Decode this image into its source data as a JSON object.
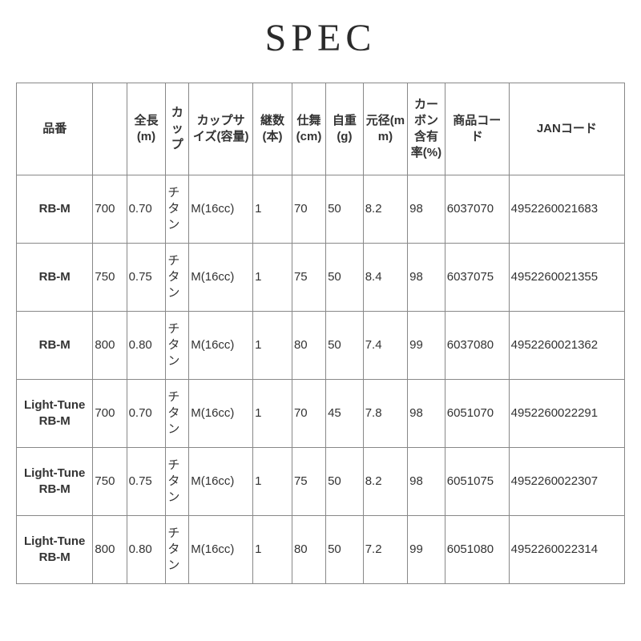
{
  "title": "SPEC",
  "table": {
    "columns": [
      {
        "key": "model",
        "label": "品番",
        "widthClass": "c0",
        "align": "center",
        "bold": true
      },
      {
        "key": "code1",
        "label": "全長(m)",
        "widthClass": "c1",
        "align": "left"
      },
      {
        "key": "length",
        "label": "カップ",
        "widthClass": "c2",
        "align": "left"
      },
      {
        "key": "cup",
        "label": "カップサイズ(容量)",
        "widthClass": "c3",
        "align": "left"
      },
      {
        "key": "cupsize",
        "label": "継数(本)",
        "widthClass": "c4",
        "align": "left"
      },
      {
        "key": "joints",
        "label": "仕舞(cm)",
        "widthClass": "c5",
        "align": "left"
      },
      {
        "key": "closed",
        "label": "自重(g)",
        "widthClass": "c6",
        "align": "left"
      },
      {
        "key": "weight",
        "label": "元径(mm)",
        "widthClass": "c7",
        "align": "left"
      },
      {
        "key": "dia",
        "label": "カーボン含有率(%)",
        "widthClass": "c8",
        "align": "left"
      },
      {
        "key": "carbon",
        "label": "商品コード",
        "widthClass": "c9",
        "align": "left"
      },
      {
        "key": "pcode",
        "label": "JANコード",
        "widthClass": "c10",
        "align": "left"
      },
      {
        "key": "jan",
        "label": "",
        "widthClass": "c11",
        "align": "left"
      }
    ],
    "headers": [
      "品番",
      "",
      "全長(m)",
      "カップ",
      "カップサイズ(容量)",
      "継数(本)",
      "仕舞(cm)",
      "自重(g)",
      "元径(mm)",
      "カーボン含有率(%)",
      "商品コード",
      "JANコード"
    ],
    "header_labels": {
      "h0": "品番",
      "h1": "",
      "h2": "全長(m)",
      "h3": "カップ",
      "h4": "カップサイズ(容量)",
      "h5": "継数(本)",
      "h6": "仕舞(cm)",
      "h7": "自重(g)",
      "h8": "元径(mm)",
      "h9": "カーボン含有率(%)",
      "h10": "商品コード",
      "h11": "JANコード"
    },
    "rows": [
      {
        "c0": "RB-M",
        "c1": "700",
        "c2": "0.70",
        "c3": "チタン",
        "c4": "M(16cc)",
        "c5": "1",
        "c6": "70",
        "c7": "50",
        "c8": "8.2",
        "c9": "98",
        "c10": "6037070",
        "c11": "4952260021683"
      },
      {
        "c0": "RB-M",
        "c1": "750",
        "c2": "0.75",
        "c3": "チタン",
        "c4": "M(16cc)",
        "c5": "1",
        "c6": "75",
        "c7": "50",
        "c8": "8.4",
        "c9": "98",
        "c10": "6037075",
        "c11": "4952260021355"
      },
      {
        "c0": "RB-M",
        "c1": "800",
        "c2": "0.80",
        "c3": "チタン",
        "c4": "M(16cc)",
        "c5": "1",
        "c6": "80",
        "c7": "50",
        "c8": "7.4",
        "c9": "99",
        "c10": "6037080",
        "c11": "4952260021362"
      },
      {
        "c0": "Light-Tune RB-M",
        "c1": "700",
        "c2": "0.70",
        "c3": "チタン",
        "c4": "M(16cc)",
        "c5": "1",
        "c6": "70",
        "c7": "45",
        "c8": "7.8",
        "c9": "98",
        "c10": "6051070",
        "c11": "4952260022291"
      },
      {
        "c0": "Light-Tune RB-M",
        "c1": "750",
        "c2": "0.75",
        "c3": "チタン",
        "c4": "M(16cc)",
        "c5": "1",
        "c6": "75",
        "c7": "50",
        "c8": "8.2",
        "c9": "98",
        "c10": "6051075",
        "c11": "4952260022307"
      },
      {
        "c0": "Light-Tune RB-M",
        "c1": "800",
        "c2": "0.80",
        "c3": "チタン",
        "c4": "M(16cc)",
        "c5": "1",
        "c6": "80",
        "c7": "50",
        "c8": "7.2",
        "c9": "99",
        "c10": "6051080",
        "c11": "4952260022314"
      }
    ],
    "styling": {
      "border_color": "#888888",
      "text_color": "#333333",
      "background": "#ffffff",
      "title_font": "serif",
      "title_size_pt": 36,
      "body_size_pt": 11,
      "header_bold": true,
      "model_col_bold": true
    }
  }
}
